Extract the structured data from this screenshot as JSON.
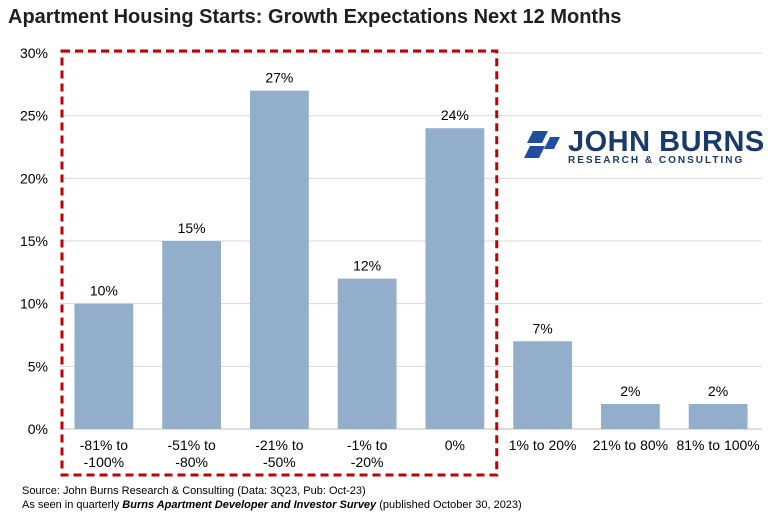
{
  "chart_data": {
    "type": "bar",
    "title": "Apartment Housing Starts: Growth Expectations Next 12 Months",
    "categories": [
      [
        "-81% to",
        "-100%"
      ],
      [
        "-51% to",
        "-80%"
      ],
      [
        "-21% to",
        "-50%"
      ],
      [
        "-1% to",
        "-20%"
      ],
      [
        "0%"
      ],
      [
        "1% to 20%"
      ],
      [
        "21% to 80%"
      ],
      [
        "81% to 100%"
      ]
    ],
    "values": [
      10,
      15,
      27,
      12,
      24,
      7,
      2,
      2
    ],
    "value_labels": [
      "10%",
      "15%",
      "27%",
      "12%",
      "24%",
      "7%",
      "2%",
      "2%"
    ],
    "y_ticks": [
      0,
      5,
      10,
      15,
      20,
      25,
      30
    ],
    "y_tick_labels": [
      "0%",
      "5%",
      "10%",
      "15%",
      "20%",
      "25%",
      "30%"
    ],
    "ylim": [
      0,
      30
    ],
    "xlabel": "",
    "ylabel": "",
    "grid": true,
    "highlight_box_categories": [
      0,
      4
    ],
    "colors": {
      "bar": "#92aecb",
      "grid": "#d9d9d9",
      "highlight": "#c00000"
    }
  },
  "logo": {
    "name": "JOHN BURNS",
    "tagline": "RESEARCH & CONSULTING",
    "color": "#1a3a6b"
  },
  "source": {
    "line1": "Source: John Burns Research & Consulting (Data: 3Q23, Pub: Oct-23)",
    "line2_prefix": "As seen in quarterly ",
    "line2_emph": "Burns Apartment Developer and Investor Survey",
    "line2_suffix": " (published October 30, 2023)"
  }
}
